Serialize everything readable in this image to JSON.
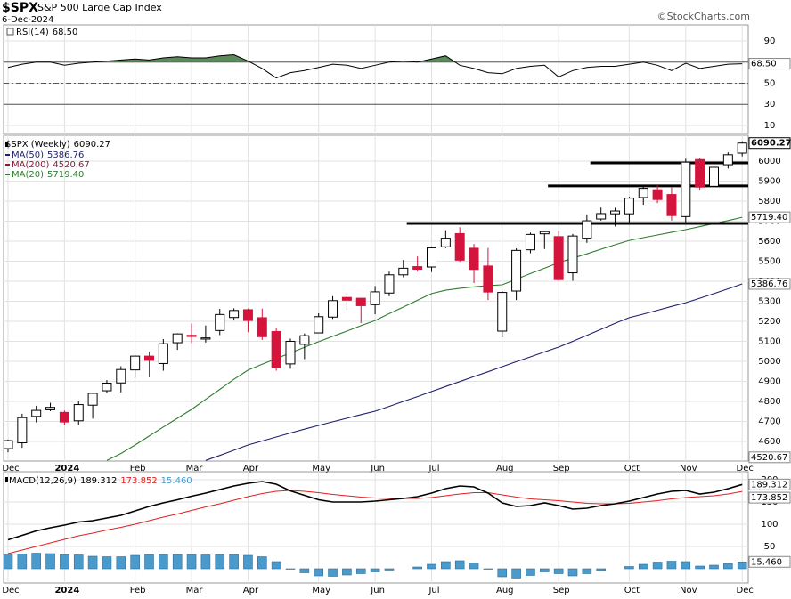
{
  "header": {
    "symbol": "$SPX",
    "name": "S&P 500 Large Cap Index",
    "date": "6-Dec-2024",
    "source": "©StockCharts.com"
  },
  "chart_data": [
    {
      "type": "rsi",
      "name": "RSI(14)",
      "last_label": "68.50",
      "color": "#000000",
      "fill": "#5b8a5b",
      "ylim": [
        2.4,
        105.2
      ],
      "yticks": [
        10,
        30,
        50,
        70,
        90
      ],
      "overbought": 70,
      "oversold": 30,
      "midline": 50,
      "values": [
        65,
        68,
        70,
        70,
        67,
        69,
        70,
        71,
        72,
        73,
        72,
        74,
        75,
        74,
        74,
        76,
        77,
        71,
        64,
        55,
        60,
        62,
        65,
        68,
        67,
        64,
        67,
        70,
        71,
        70,
        73,
        76,
        67,
        64,
        60,
        59,
        64,
        66,
        67,
        56,
        62,
        65,
        66,
        66,
        68,
        70,
        67,
        62,
        69,
        64,
        66,
        68,
        68.5
      ]
    },
    {
      "type": "candlestick",
      "name": "$SPX (Weekly)",
      "up_color": "#ffffff",
      "down_color": "#d4143c",
      "ylim": [
        4502,
        6129
      ],
      "yticks": [
        4600,
        4700,
        4800,
        4900,
        5000,
        5100,
        5200,
        5300,
        5400,
        5500,
        5600,
        5700,
        5800,
        5900,
        6000
      ],
      "grid": true,
      "categories": [
        "Dec",
        null,
        null,
        null,
        "2024",
        null,
        null,
        null,
        null,
        "Feb",
        null,
        null,
        null,
        "Mar",
        null,
        null,
        null,
        "Apr",
        null,
        null,
        null,
        null,
        "May",
        null,
        null,
        null,
        "Jun",
        null,
        null,
        null,
        "Jul",
        null,
        null,
        null,
        null,
        "Aug",
        null,
        null,
        null,
        "Sep",
        null,
        null,
        null,
        null,
        "Oct",
        null,
        null,
        null,
        "Nov",
        null,
        null,
        null,
        "Dec"
      ],
      "open": [
        4564,
        4593,
        4725,
        4758,
        4745,
        4703,
        4781,
        4853,
        4892,
        4957,
        5026,
        4989,
        5093,
        5130,
        5111,
        5154,
        5219,
        5258,
        5218,
        5149,
        4987,
        5085,
        5142,
        5221,
        5319,
        5315,
        5283,
        5341,
        5432,
        5473,
        5471,
        5572,
        5638,
        5565,
        5476,
        5151,
        5351,
        5557,
        5637,
        5623,
        5442,
        5615,
        5711,
        5737,
        5737,
        5818,
        5857,
        5833,
        5723,
        6008,
        5874,
        5982,
        6040
      ],
      "high": [
        4609,
        4738,
        4778,
        4793,
        4754,
        4802,
        4843,
        4906,
        4975,
        5030,
        5048,
        5111,
        5140,
        5189,
        5179,
        5262,
        5265,
        5264,
        5263,
        5168,
        5114,
        5139,
        5240,
        5325,
        5342,
        5315,
        5376,
        5448,
        5506,
        5524,
        5570,
        5655,
        5670,
        5586,
        5566,
        5351,
        5564,
        5643,
        5651,
        5651,
        5636,
        5734,
        5768,
        5767,
        5822,
        5878,
        5879,
        5868,
        6012,
        6018,
        5973,
        6044,
        6099
      ],
      "low": [
        4546,
        4568,
        4695,
        4751,
        4682,
        4682,
        4714,
        4842,
        4845,
        4918,
        4920,
        4953,
        5057,
        5091,
        5094,
        5131,
        5204,
        5146,
        5107,
        4953,
        4963,
        5011,
        5142,
        5212,
        5257,
        5191,
        5235,
        5325,
        5420,
        5448,
        5446,
        5565,
        5497,
        5391,
        5306,
        5120,
        5306,
        5540,
        5561,
        5403,
        5402,
        5592,
        5703,
        5674,
        5696,
        5782,
        5790,
        5703,
        5696,
        5853,
        5855,
        5963,
        6024
      ],
      "close": [
        4604,
        4719,
        4755,
        4770,
        4697,
        4784,
        4840,
        4891,
        4959,
        5026,
        5005,
        5088,
        5137,
        5124,
        5117,
        5234,
        5254,
        5204,
        5123,
        4967,
        5100,
        5128,
        5223,
        5303,
        5305,
        5278,
        5347,
        5432,
        5465,
        5460,
        5567,
        5615,
        5505,
        5459,
        5346,
        5344,
        5554,
        5634,
        5648,
        5408,
        5626,
        5702,
        5738,
        5751,
        5815,
        5864,
        5808,
        5728,
        5995,
        5870,
        5969,
        6032,
        6090.27
      ],
      "moving_averages": [
        {
          "name": "MA(50)",
          "color": "#1f1f6e",
          "last": 5386.76,
          "values": [
            null,
            null,
            null,
            null,
            null,
            null,
            null,
            null,
            null,
            null,
            null,
            null,
            null,
            null,
            4505,
            4530,
            4556,
            4582,
            4602,
            4622,
            4642,
            4661,
            4680,
            4698,
            4716,
            4734,
            4751,
            4775,
            4800,
            4824,
            4849,
            4874,
            4899,
            4924,
            4948,
            4973,
            4998,
            5022,
            5047,
            5071,
            5100,
            5130,
            5160,
            5190,
            5218,
            5236,
            5255,
            5274,
            5293,
            5315,
            5338,
            5362,
            5386.76
          ]
        },
        {
          "name": "MA(200)",
          "color": "#8b1a3a",
          "last": 4520.67
        },
        {
          "name": "MA(20)",
          "color": "#2e7d2e",
          "last": 5719.4,
          "last_label": "5719.40",
          "values": [
            null,
            null,
            null,
            null,
            null,
            null,
            null,
            4505,
            4540,
            4582,
            4627,
            4672,
            4716,
            4760,
            4810,
            4860,
            4910,
            4956,
            4985,
            5013,
            5042,
            5070,
            5098,
            5125,
            5151,
            5178,
            5204,
            5238,
            5271,
            5305,
            5338,
            5355,
            5365,
            5372,
            5378,
            5382,
            5410,
            5438,
            5465,
            5493,
            5515,
            5537,
            5560,
            5582,
            5604,
            5618,
            5631,
            5645,
            5658,
            5673,
            5688,
            5703,
            5719.4
          ]
        }
      ],
      "levels": [
        {
          "value": 5689,
          "start": 29
        },
        {
          "value": 5876,
          "start": 39
        },
        {
          "value": 5991,
          "start": 42
        }
      ]
    },
    {
      "type": "macd",
      "name": "MACD(12,26,9)",
      "ylim": [
        -32,
        218
      ],
      "yticks": [
        50,
        100,
        150,
        200
      ],
      "categories": [
        "Dec",
        null,
        null,
        null,
        "2024",
        null,
        null,
        null,
        null,
        "Feb",
        null,
        null,
        null,
        "Mar",
        null,
        null,
        null,
        "Apr",
        null,
        null,
        null,
        null,
        "May",
        null,
        null,
        null,
        "Jun",
        null,
        null,
        null,
        "Jul",
        null,
        null,
        null,
        null,
        "Aug",
        null,
        null,
        null,
        "Sep",
        null,
        null,
        null,
        null,
        "Oct",
        null,
        null,
        null,
        "Nov",
        null,
        null,
        null,
        "Dec"
      ],
      "series": [
        {
          "name": "MACD",
          "color": "#000000",
          "values": [
            65,
            75,
            85,
            92,
            98,
            105,
            108,
            114,
            120,
            130,
            140,
            148,
            155,
            163,
            170,
            178,
            186,
            192,
            196,
            190,
            175,
            165,
            155,
            150,
            150,
            150,
            152,
            155,
            158,
            162,
            170,
            180,
            186,
            184,
            170,
            148,
            140,
            142,
            148,
            142,
            134,
            136,
            142,
            146,
            152,
            160,
            168,
            174,
            176,
            168,
            172,
            180,
            189.312
          ]
        },
        {
          "name": "Signal",
          "color": "#e02020",
          "values": [
            34,
            42,
            50,
            58,
            66,
            74,
            80,
            87,
            93,
            100,
            108,
            116,
            123,
            131,
            139,
            146,
            154,
            162,
            169,
            174,
            176,
            174,
            171,
            167,
            164,
            161,
            159,
            158,
            158,
            158,
            160,
            164,
            168,
            171,
            171,
            166,
            161,
            157,
            155,
            153,
            150,
            147,
            146,
            146,
            147,
            150,
            153,
            157,
            160,
            162,
            164,
            168,
            173.852
          ]
        },
        {
          "name": "Histogram",
          "color": "#4a9acb",
          "last_label": "15.460",
          "values": [
            31,
            33,
            35,
            34,
            32,
            31,
            28,
            27,
            27,
            30,
            32,
            32,
            32,
            32,
            31,
            32,
            32,
            30,
            27,
            16,
            -1,
            -9,
            -16,
            -17,
            -14,
            -11,
            -7,
            -3,
            0,
            4,
            10,
            16,
            18,
            13,
            -1,
            -18,
            -21,
            -15,
            -7,
            -11,
            -16,
            -11,
            -4,
            0,
            5,
            10,
            15,
            17,
            16,
            6,
            8,
            12,
            15.46
          ]
        }
      ]
    }
  ]
}
